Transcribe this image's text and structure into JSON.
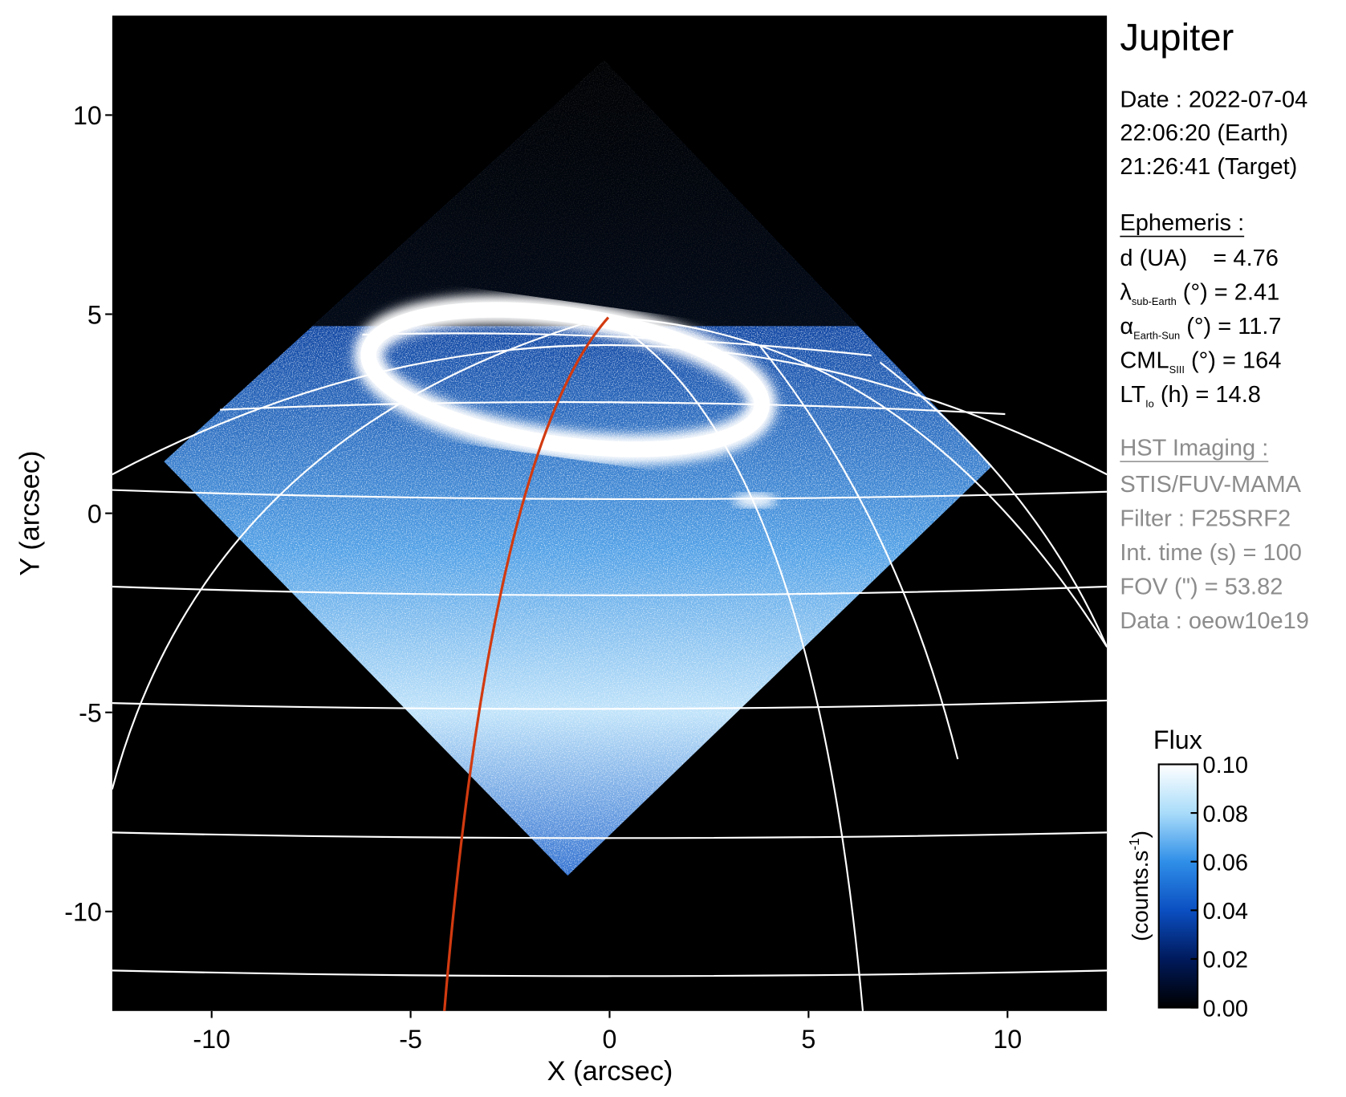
{
  "chart_data": {
    "type": "image",
    "title": "Jupiter",
    "x_label": "X (arcsec)",
    "y_label": "Y (arcsec)",
    "xlim": [
      -12.5,
      12.5
    ],
    "ylim": [
      -12.5,
      12.5
    ],
    "xticks": [
      -10,
      -5,
      0,
      5,
      10
    ],
    "yticks": [
      -10,
      -5,
      0,
      5,
      10
    ],
    "info": {
      "date": [
        "Date : 2022-07-04",
        "22:06:20 (Earth)",
        "21:26:41 (Target)"
      ],
      "ephemeris": {
        "heading": "Ephemeris :",
        "rows": [
          {
            "main": "d (UA)    = 4.76"
          },
          {
            "main": "λ",
            "sub": "sub-Earth",
            "rest": " (°) = 2.41"
          },
          {
            "main": "α",
            "sub": "Earth-Sun",
            "rest": " (°) = 11.7"
          },
          {
            "main": "CML",
            "sub": "SIII",
            "rest": " (°) = 164"
          },
          {
            "main": "LT",
            "sub": "Io",
            "rest": " (h) = 14.8"
          }
        ]
      },
      "imaging": {
        "heading": "HST Imaging :",
        "rows": [
          "STIS/FUV-MAMA",
          "Filter : F25SRF2",
          "Int. time (s) = 100",
          "FOV (\") = 53.82",
          "Data : oeow10e19"
        ]
      }
    },
    "colorbar": {
      "title": "Flux",
      "label": "(counts.s",
      "label_sup": "-1",
      "label_end": ")",
      "lim": [
        0,
        0.1
      ],
      "ticks": [
        {
          "value": 0,
          "label": "0.00"
        },
        {
          "value": 0.02,
          "label": "0.02"
        },
        {
          "value": 0.04,
          "label": "0.04"
        },
        {
          "value": 0.06,
          "label": "0.06"
        },
        {
          "value": 0.08,
          "label": "0.08"
        },
        {
          "value": 0.1,
          "label": "0.10"
        }
      ],
      "colors": [
        "#000000",
        "#001a5c",
        "#0b4fc2",
        "#2f8fe8",
        "#a9dcfa",
        "#ffffff"
      ]
    }
  }
}
